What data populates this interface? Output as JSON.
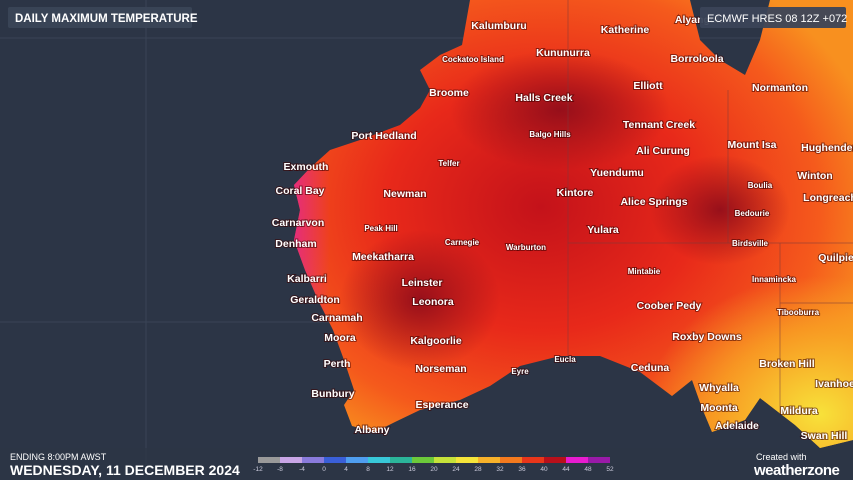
{
  "header": {
    "title": "DAILY MAXIMUM TEMPERATURE",
    "model": "ECMWF HRES 08 12Z +072"
  },
  "places": [
    {
      "name": "Kalumburu",
      "kind": "major"
    },
    {
      "name": "Katherine",
      "kind": "major"
    },
    {
      "name": "Alyangula",
      "kind": "major"
    },
    {
      "name": "Kununurra",
      "kind": "major"
    },
    {
      "name": "Borroloola",
      "kind": "major"
    },
    {
      "name": "Cockatoo Island",
      "kind": "minor"
    },
    {
      "name": "Broome",
      "kind": "major"
    },
    {
      "name": "Halls Creek",
      "kind": "major"
    },
    {
      "name": "Elliott",
      "kind": "major"
    },
    {
      "name": "Normanton",
      "kind": "major"
    },
    {
      "name": "Balgo Hills",
      "kind": "minor"
    },
    {
      "name": "Tennant Creek",
      "kind": "major"
    },
    {
      "name": "Port Hedland",
      "kind": "major"
    },
    {
      "name": "Mount Isa",
      "kind": "major"
    },
    {
      "name": "Hughenden",
      "kind": "major"
    },
    {
      "name": "Ali Curung",
      "kind": "major"
    },
    {
      "name": "Telfer",
      "kind": "minor"
    },
    {
      "name": "Exmouth",
      "kind": "major"
    },
    {
      "name": "Yuendumu",
      "kind": "major"
    },
    {
      "name": "Winton",
      "kind": "major"
    },
    {
      "name": "Boulia",
      "kind": "minor"
    },
    {
      "name": "Coral Bay",
      "kind": "major"
    },
    {
      "name": "Newman",
      "kind": "major"
    },
    {
      "name": "Kintore",
      "kind": "major"
    },
    {
      "name": "Longreach",
      "kind": "major"
    },
    {
      "name": "Alice Springs",
      "kind": "major"
    },
    {
      "name": "Bedourie",
      "kind": "minor"
    },
    {
      "name": "Carnarvon",
      "kind": "major"
    },
    {
      "name": "Peak Hill",
      "kind": "minor"
    },
    {
      "name": "Yulara",
      "kind": "major"
    },
    {
      "name": "Denham",
      "kind": "major"
    },
    {
      "name": "Carnegie",
      "kind": "minor"
    },
    {
      "name": "Warburton",
      "kind": "minor"
    },
    {
      "name": "Birdsville",
      "kind": "minor"
    },
    {
      "name": "Meekatharra",
      "kind": "major"
    },
    {
      "name": "Quilpie",
      "kind": "major"
    },
    {
      "name": "Mintabie",
      "kind": "minor"
    },
    {
      "name": "Kalbarri",
      "kind": "major"
    },
    {
      "name": "Innamincka",
      "kind": "minor"
    },
    {
      "name": "Leinster",
      "kind": "major"
    },
    {
      "name": "Geraldton",
      "kind": "major"
    },
    {
      "name": "Leonora",
      "kind": "major"
    },
    {
      "name": "Coober Pedy",
      "kind": "major"
    },
    {
      "name": "Tibooburra",
      "kind": "minor"
    },
    {
      "name": "Carnamah",
      "kind": "major"
    },
    {
      "name": "Moora",
      "kind": "major"
    },
    {
      "name": "Kalgoorlie",
      "kind": "major"
    },
    {
      "name": "Roxby Downs",
      "kind": "major"
    },
    {
      "name": "Eucla",
      "kind": "minor"
    },
    {
      "name": "Perth",
      "kind": "major"
    },
    {
      "name": "Broken Hill",
      "kind": "major"
    },
    {
      "name": "Norseman",
      "kind": "major"
    },
    {
      "name": "Ceduna",
      "kind": "major"
    },
    {
      "name": "Eyre",
      "kind": "minor"
    },
    {
      "name": "Ivanhoe",
      "kind": "major"
    },
    {
      "name": "Whyalla",
      "kind": "major"
    },
    {
      "name": "Bunbury",
      "kind": "major"
    },
    {
      "name": "Esperance",
      "kind": "major"
    },
    {
      "name": "Moonta",
      "kind": "major"
    },
    {
      "name": "Mildura",
      "kind": "major"
    },
    {
      "name": "Adelaide",
      "kind": "major"
    },
    {
      "name": "Swan Hill",
      "kind": "major"
    },
    {
      "name": "Albany",
      "kind": "major"
    }
  ],
  "footer": {
    "ending": "ENDING 8:00PM AWST",
    "date": "WEDNESDAY, 11 DECEMBER 2024"
  },
  "legend": {
    "ticks": [
      -12,
      -8,
      -4,
      0,
      4,
      8,
      12,
      16,
      20,
      24,
      28,
      32,
      36,
      40,
      44,
      48,
      52
    ],
    "colors": [
      "#9a9a9a",
      "#c9a6e6",
      "#8a7bdc",
      "#3a5fd8",
      "#4f9ef0",
      "#38c8d8",
      "#2bb59a",
      "#6cc93a",
      "#c6e23a",
      "#f5e53a",
      "#f8b22a",
      "#f47a1e",
      "#e9361a",
      "#b8101a",
      "#e81ccf",
      "#9a1aa8"
    ]
  },
  "branding": {
    "created": "Created with",
    "brand": "weatherzone"
  }
}
